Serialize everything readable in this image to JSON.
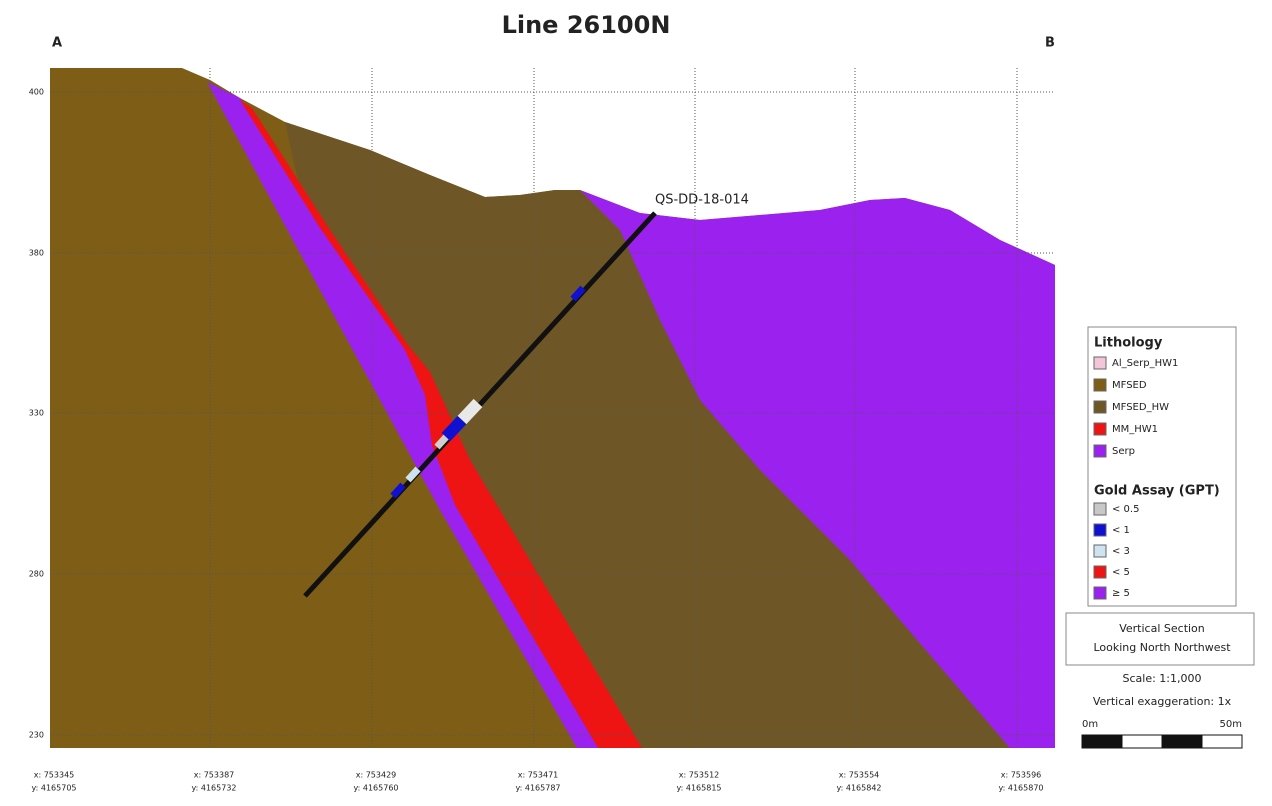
{
  "header": {
    "title": "Line 26100N",
    "left_end": "A",
    "right_end": "B"
  },
  "y_axis": {
    "labels": [
      "400",
      "380",
      "330",
      "280",
      "230"
    ]
  },
  "x_axis": {
    "labels": [
      {
        "x": "x: 753345",
        "y": "y: 4165705"
      },
      {
        "x": "x: 753387",
        "y": "y: 4165732"
      },
      {
        "x": "x: 753429",
        "y": "y: 4165760"
      },
      {
        "x": "x: 753471",
        "y": "y: 4165787"
      },
      {
        "x": "x: 753512",
        "y": "y: 4165815"
      },
      {
        "x": "x: 753554",
        "y": "y: 4165842"
      },
      {
        "x": "x: 753596",
        "y": "y: 4165870"
      }
    ]
  },
  "drillhole": {
    "label": "QS-DD-18-014"
  },
  "legend": {
    "lithology": {
      "title": "Lithology",
      "items": [
        "Al_Serp_HW1",
        "MFSED",
        "MFSED_HW",
        "MM_HW1",
        "Serp"
      ]
    },
    "gold_assay": {
      "title": "Gold Assay (GPT)",
      "items": [
        "< 0.5",
        "< 1",
        "< 3",
        "< 5",
        "≥ 5"
      ]
    }
  },
  "section_info": {
    "lines": [
      "Vertical Section",
      "Looking North Northwest"
    ],
    "scale": "Scale: 1:1,000",
    "exaggeration": "Vertical exaggeration: 1x"
  },
  "scale_bar": {
    "start": "0m",
    "end": "50m"
  }
}
